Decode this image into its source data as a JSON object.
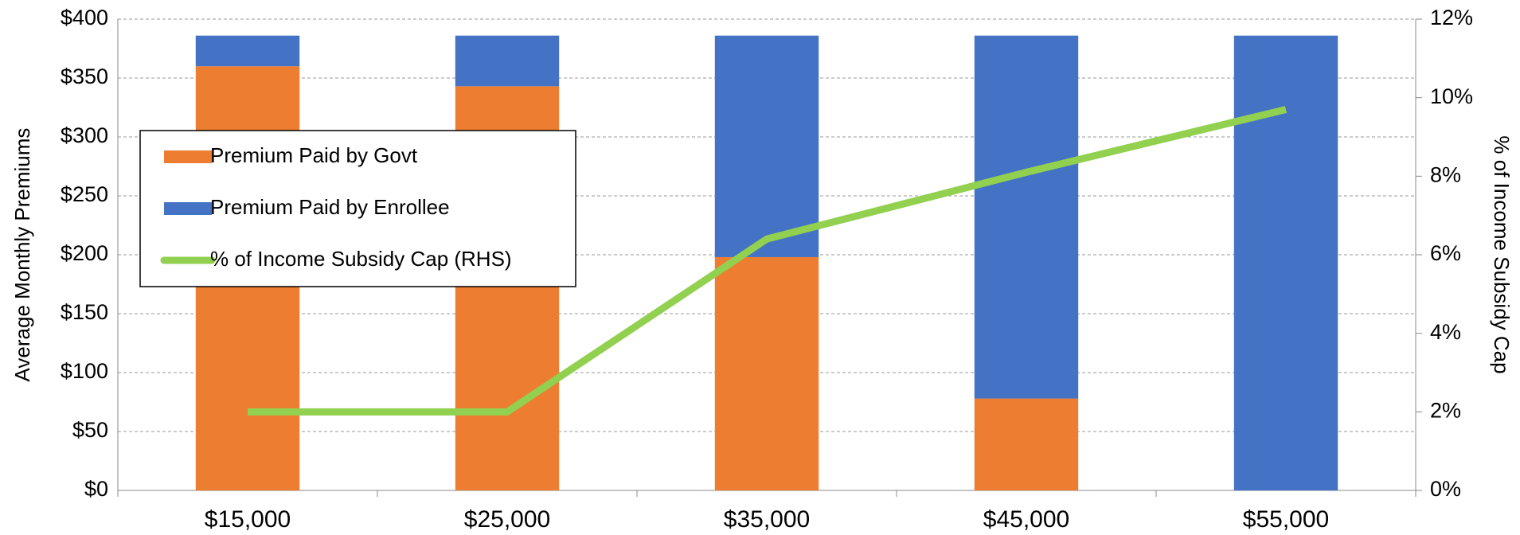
{
  "chart_data": {
    "type": "bar",
    "stacked": true,
    "categories": [
      "$15,000",
      "$25,000",
      "$35,000",
      "$45,000",
      "$55,000"
    ],
    "series": [
      {
        "name": "Premium Paid by Govt",
        "color": "#ED7D31",
        "values": [
          360,
          343,
          198,
          78,
          0
        ]
      },
      {
        "name": "Premium Paid by Enrollee",
        "color": "#4472C4",
        "values": [
          26,
          43,
          188,
          308,
          386
        ]
      },
      {
        "name": "% of Income Subsidy Cap (RHS)",
        "type": "line",
        "axis": "y2",
        "color": "#92D050",
        "values": [
          2.0,
          2.0,
          6.4,
          8.1,
          9.7
        ]
      }
    ],
    "ylabel": "Average Monthly Premiums",
    "y2label": "% of Income Subsidy Cap",
    "ylim": [
      0,
      400
    ],
    "yticks": [
      {
        "value": 0,
        "label": "$0"
      },
      {
        "value": 50,
        "label": "$50"
      },
      {
        "value": 100,
        "label": "$100"
      },
      {
        "value": 150,
        "label": "$150"
      },
      {
        "value": 200,
        "label": "$200"
      },
      {
        "value": 250,
        "label": "$250"
      },
      {
        "value": 300,
        "label": "$300"
      },
      {
        "value": 350,
        "label": "$350"
      },
      {
        "value": 400,
        "label": "$400"
      }
    ],
    "y2lim": [
      0,
      12
    ],
    "y2ticks": [
      {
        "value": 0,
        "label": "0%"
      },
      {
        "value": 2,
        "label": "2%"
      },
      {
        "value": 4,
        "label": "4%"
      },
      {
        "value": 6,
        "label": "6%"
      },
      {
        "value": 8,
        "label": "8%"
      },
      {
        "value": 10,
        "label": "10%"
      },
      {
        "value": 12,
        "label": "12%"
      }
    ],
    "grid": true,
    "legend": "upper left"
  }
}
